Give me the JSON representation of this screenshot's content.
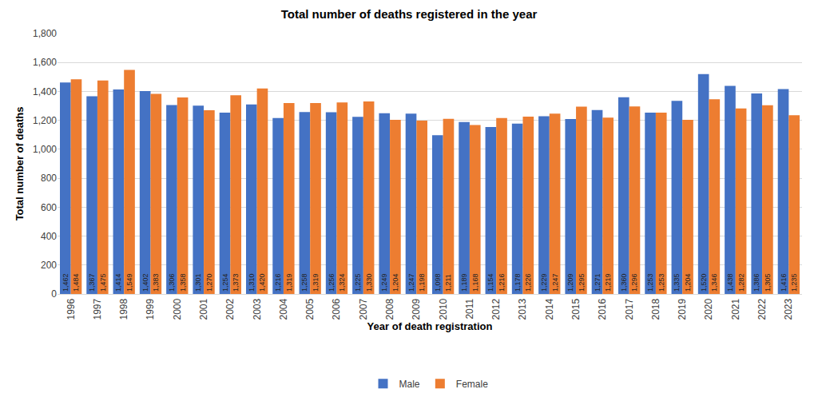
{
  "chart_data": {
    "type": "bar",
    "title": "Total number of deaths registered in the year",
    "x_label": "Year of death registration",
    "y_label": "Total number of deaths",
    "categories": [
      "1996",
      "1997",
      "1998",
      "1999",
      "2000",
      "2001",
      "2002",
      "2003",
      "2004",
      "2005",
      "2006",
      "2007",
      "2008",
      "2009",
      "2010",
      "2011",
      "2012",
      "2013",
      "2014",
      "2015",
      "2016",
      "2017",
      "2018",
      "2019",
      "2020",
      "2021",
      "2022",
      "2023"
    ],
    "series": [
      {
        "name": "Male",
        "color": "#4472c4",
        "values": [
          1462,
          1367,
          1414,
          1402,
          1306,
          1301,
          1254,
          1310,
          1216,
          1258,
          1256,
          1225,
          1249,
          1247,
          1098,
          1189,
          1154,
          1178,
          1229,
          1209,
          1271,
          1360,
          1253,
          1335,
          1520,
          1438,
          1386,
          1416
        ],
        "value_labels": [
          "1,462",
          "1,367",
          "1,414",
          "1,402",
          "1,306",
          "1,301",
          "1,254",
          "1,310",
          "1,216",
          "1,258",
          "1,256",
          "1,225",
          "1,249",
          "1,247",
          "1,098",
          "1,189",
          "1,154",
          "1,178",
          "1,229",
          "1,209",
          "1,271",
          "1,360",
          "1,253",
          "1,335",
          "1,520",
          "1,438",
          "1,386",
          "1,416"
        ]
      },
      {
        "name": "Female",
        "color": "#ed7d31",
        "values": [
          1484,
          1475,
          1549,
          1383,
          1358,
          1270,
          1373,
          1420,
          1319,
          1319,
          1324,
          1330,
          1204,
          1198,
          1211,
          1168,
          1216,
          1226,
          1247,
          1295,
          1219,
          1296,
          1253,
          1204,
          1346,
          1282,
          1305,
          1235
        ],
        "value_labels": [
          "1,484",
          "1,475",
          "1,549",
          "1,383",
          "1,358",
          "1,270",
          "1,373",
          "1,420",
          "1,319",
          "1,319",
          "1,324",
          "1,330",
          "1,204",
          "1,198",
          "1,211",
          "1,168",
          "1,216",
          "1,226",
          "1,247",
          "1,295",
          "1,219",
          "1,296",
          "1,253",
          "1,204",
          "1,346",
          "1,282",
          "1,305",
          "1,235"
        ]
      }
    ],
    "ylim": [
      0,
      1800
    ],
    "yticks": [
      0,
      200,
      400,
      600,
      800,
      {
        "value": 1000,
        "label": "1,000"
      },
      {
        "value": 1200,
        "label": "1,200"
      },
      {
        "value": 1400,
        "label": "1,400"
      },
      {
        "value": 1600,
        "label": "1,600"
      },
      {
        "value": 1800,
        "label": "1,800"
      }
    ],
    "grid": true,
    "legend": "bottom",
    "data_labels": true
  }
}
